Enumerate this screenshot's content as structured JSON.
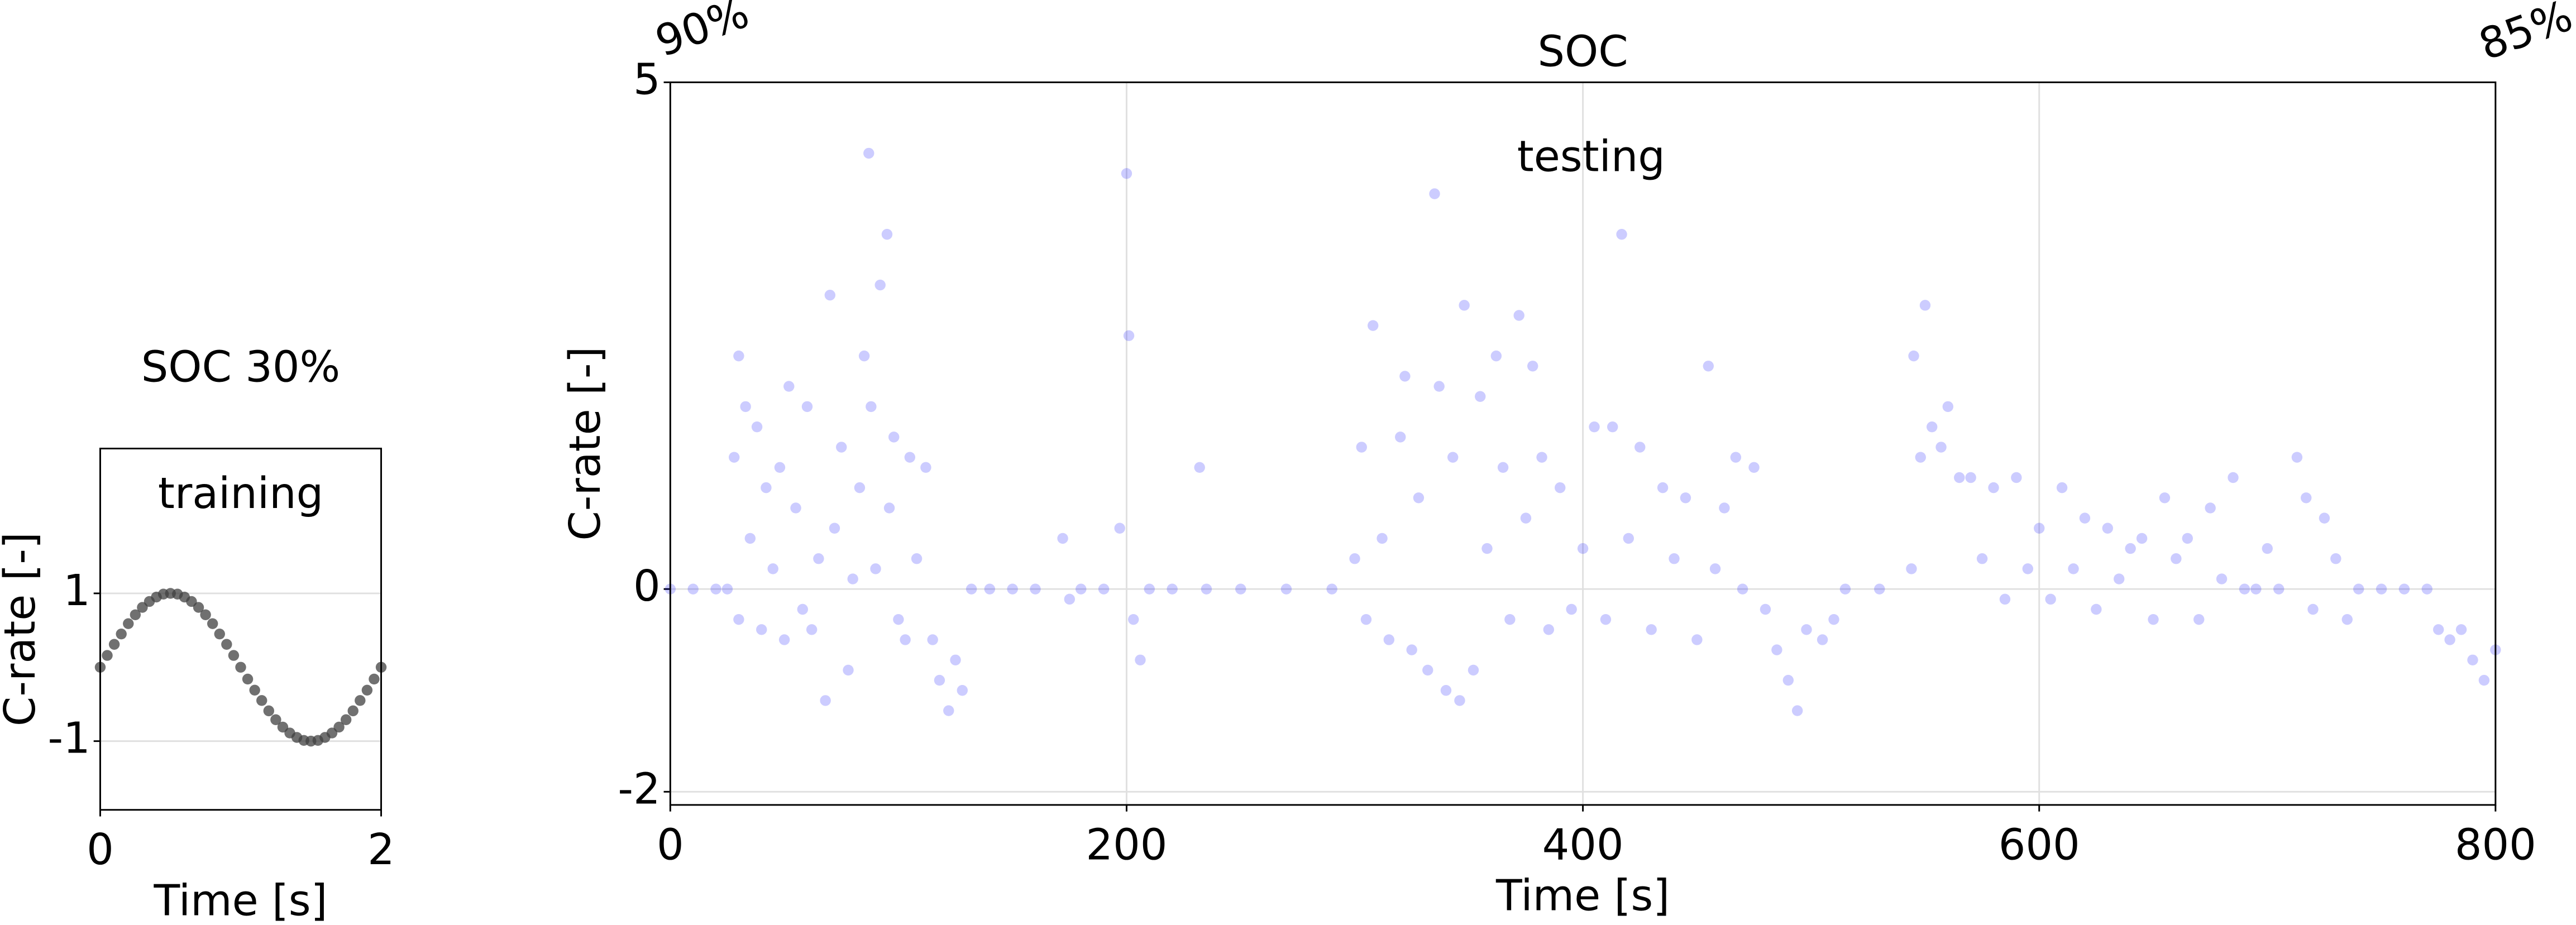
{
  "chart_data": [
    {
      "type": "scatter",
      "title": "SOC 30%",
      "title_color": "#008000",
      "annotation": "training",
      "annotation_color": "#000000",
      "xlabel": "Time [s]",
      "ylabel": "C-rate [-]",
      "color": "#404040",
      "alpha": 0.75,
      "grid": true,
      "xlim": [
        0,
        2
      ],
      "ylim": [
        -1.93,
        2.96
      ],
      "xticks": [
        0,
        2
      ],
      "yticks": [
        -1,
        1
      ],
      "x": [
        0,
        0.05,
        0.1,
        0.15,
        0.2,
        0.25,
        0.3,
        0.35,
        0.4,
        0.45,
        0.5,
        0.55,
        0.6,
        0.65,
        0.7,
        0.75,
        0.8,
        0.85,
        0.9,
        0.95,
        1,
        1.05,
        1.1,
        1.15,
        1.2,
        1.25,
        1.3,
        1.35,
        1.4,
        1.45,
        1.5,
        1.55,
        1.6,
        1.65,
        1.7,
        1.75,
        1.8,
        1.85,
        1.9,
        1.95,
        2
      ],
      "values": [
        0,
        0.16,
        0.31,
        0.45,
        0.59,
        0.71,
        0.81,
        0.89,
        0.95,
        0.99,
        1,
        0.99,
        0.95,
        0.89,
        0.81,
        0.71,
        0.59,
        0.45,
        0.31,
        0.16,
        0,
        -0.16,
        -0.31,
        -0.45,
        -0.59,
        -0.71,
        -0.81,
        -0.89,
        -0.95,
        -0.99,
        -1,
        -0.99,
        -0.95,
        -0.89,
        -0.81,
        -0.71,
        -0.59,
        -0.45,
        -0.31,
        -0.16,
        0
      ]
    },
    {
      "type": "scatter",
      "title": "SOC",
      "title_color": "#008000",
      "annotation": "testing",
      "annotation_color": "#0000ff",
      "start_label": "90%",
      "end_label": "85%",
      "xlabel": "Time [s]",
      "ylabel": "C-rate [-]",
      "color": "#0000ff",
      "alpha": 0.2,
      "grid": true,
      "xlim": [
        0,
        800
      ],
      "ylim": [
        -2.13,
        5
      ],
      "xticks": [
        0,
        200,
        400,
        600,
        800
      ],
      "yticks": [
        -2,
        0,
        5
      ],
      "x": [
        0,
        10,
        20,
        25,
        28,
        30,
        30,
        33,
        35,
        38,
        40,
        42,
        45,
        48,
        50,
        52,
        55,
        58,
        60,
        62,
        65,
        68,
        70,
        72,
        75,
        78,
        80,
        83,
        85,
        87,
        88,
        90,
        92,
        95,
        96,
        98,
        100,
        103,
        105,
        108,
        112,
        115,
        118,
        122,
        125,
        128,
        132,
        140,
        150,
        160,
        172,
        175,
        180,
        190,
        197,
        200,
        201,
        203,
        206,
        210,
        220,
        232,
        235,
        250,
        270,
        290,
        300,
        303,
        305,
        308,
        312,
        315,
        320,
        322,
        325,
        328,
        332,
        335,
        337,
        340,
        343,
        346,
        348,
        352,
        355,
        358,
        362,
        365,
        368,
        372,
        375,
        378,
        382,
        385,
        390,
        395,
        400,
        405,
        410,
        413,
        417,
        420,
        425,
        430,
        435,
        440,
        445,
        450,
        455,
        458,
        462,
        467,
        470,
        475,
        480,
        485,
        490,
        494,
        498,
        505,
        510,
        515,
        530,
        544,
        545,
        548,
        550,
        553,
        557,
        560,
        565,
        570,
        575,
        580,
        585,
        590,
        595,
        600,
        605,
        610,
        615,
        620,
        625,
        630,
        635,
        640,
        645,
        650,
        655,
        660,
        665,
        670,
        675,
        680,
        685,
        690,
        695,
        700,
        705,
        713,
        717,
        720,
        725,
        730,
        735,
        740,
        750,
        760,
        770,
        775,
        780,
        785,
        790,
        795,
        800
      ],
      "values": [
        0,
        0,
        0,
        0,
        1.3,
        2.3,
        -0.3,
        1.8,
        0.5,
        1.6,
        -0.4,
        1.0,
        0.2,
        1.2,
        -0.5,
        2.0,
        0.8,
        -0.2,
        1.8,
        -0.4,
        0.3,
        -1.1,
        2.9,
        0.6,
        1.4,
        -0.8,
        0.1,
        1.0,
        2.3,
        4.3,
        1.8,
        0.2,
        3.0,
        3.5,
        0.8,
        1.5,
        -0.3,
        -0.5,
        1.3,
        0.3,
        1.2,
        -0.5,
        -0.9,
        -1.2,
        -0.7,
        -1.0,
        0,
        0,
        0,
        0,
        0.5,
        -0.1,
        0,
        0,
        0.6,
        4.1,
        2.5,
        -0.3,
        -0.7,
        0,
        0,
        1.2,
        0,
        0,
        0,
        0,
        0.3,
        1.4,
        -0.3,
        2.6,
        0.5,
        -0.5,
        1.5,
        2.1,
        -0.6,
        0.9,
        -0.8,
        3.9,
        2.0,
        -1.0,
        1.3,
        -1.1,
        2.8,
        -0.8,
        1.9,
        0.4,
        2.3,
        1.2,
        -0.3,
        2.7,
        0.7,
        2.2,
        1.3,
        -0.4,
        1.0,
        -0.2,
        0.4,
        1.6,
        -0.3,
        1.6,
        3.5,
        0.5,
        1.4,
        -0.4,
        1.0,
        0.3,
        0.9,
        -0.5,
        2.2,
        0.2,
        0.8,
        1.3,
        0,
        1.2,
        -0.2,
        -0.6,
        -0.9,
        -1.2,
        -0.4,
        -0.5,
        -0.3,
        0,
        0,
        0.2,
        2.3,
        1.3,
        2.8,
        1.6,
        1.4,
        1.8,
        1.1,
        1.1,
        0.3,
        1.0,
        -0.1,
        1.1,
        0.2,
        0.6,
        -0.1,
        1.0,
        0.2,
        0.7,
        -0.2,
        0.6,
        0.1,
        0.4,
        0.5,
        -0.3,
        0.9,
        0.3,
        0.5,
        -0.3,
        0.8,
        0.1,
        1.1,
        0,
        0,
        0.4,
        0,
        1.3,
        0.9,
        -0.2,
        0.7,
        0.3,
        -0.3,
        0,
        0,
        0,
        0,
        -0.4,
        -0.5,
        -0.4,
        -0.7,
        -0.9,
        -0.6
      ]
    }
  ]
}
